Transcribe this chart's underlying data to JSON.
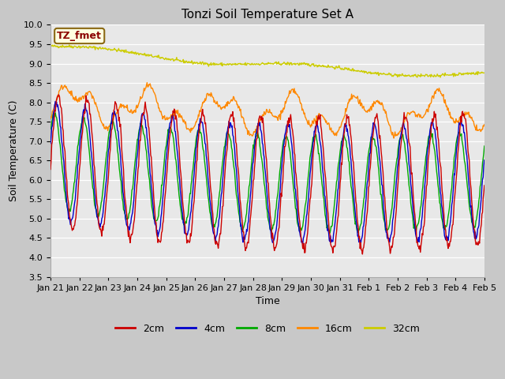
{
  "title": "Tonzi Soil Temperature Set A",
  "xlabel": "Time",
  "ylabel": "Soil Temperature (C)",
  "annotation": "TZ_fmet",
  "ylim": [
    3.5,
    10.0
  ],
  "yticks": [
    3.5,
    4.0,
    4.5,
    5.0,
    5.5,
    6.0,
    6.5,
    7.0,
    7.5,
    8.0,
    8.5,
    9.0,
    9.5,
    10.0
  ],
  "xtick_labels": [
    "Jan 21",
    "Jan 22",
    "Jan 23",
    "Jan 24",
    "Jan 25",
    "Jan 26",
    "Jan 27",
    "Jan 28",
    "Jan 29",
    "Jan 30",
    "Jan 31",
    "Feb 1",
    "Feb 2",
    "Feb 3",
    "Feb 4",
    "Feb 5"
  ],
  "series_colors": {
    "2cm": "#cc0000",
    "4cm": "#0000cc",
    "8cm": "#00aa00",
    "16cm": "#ff8800",
    "32cm": "#cccc00"
  },
  "fig_facecolor": "#c8c8c8",
  "ax_facecolor": "#e8e8e8",
  "grid_color": "#ffffff",
  "title_fontsize": 11,
  "axis_label_fontsize": 9,
  "tick_fontsize": 8,
  "legend_fontsize": 9,
  "annotation_color": "#8b0000",
  "annotation_bg": "#ffffe0",
  "annotation_border": "#8b6914",
  "annotation_fontsize": 9,
  "linewidth": 1.0
}
